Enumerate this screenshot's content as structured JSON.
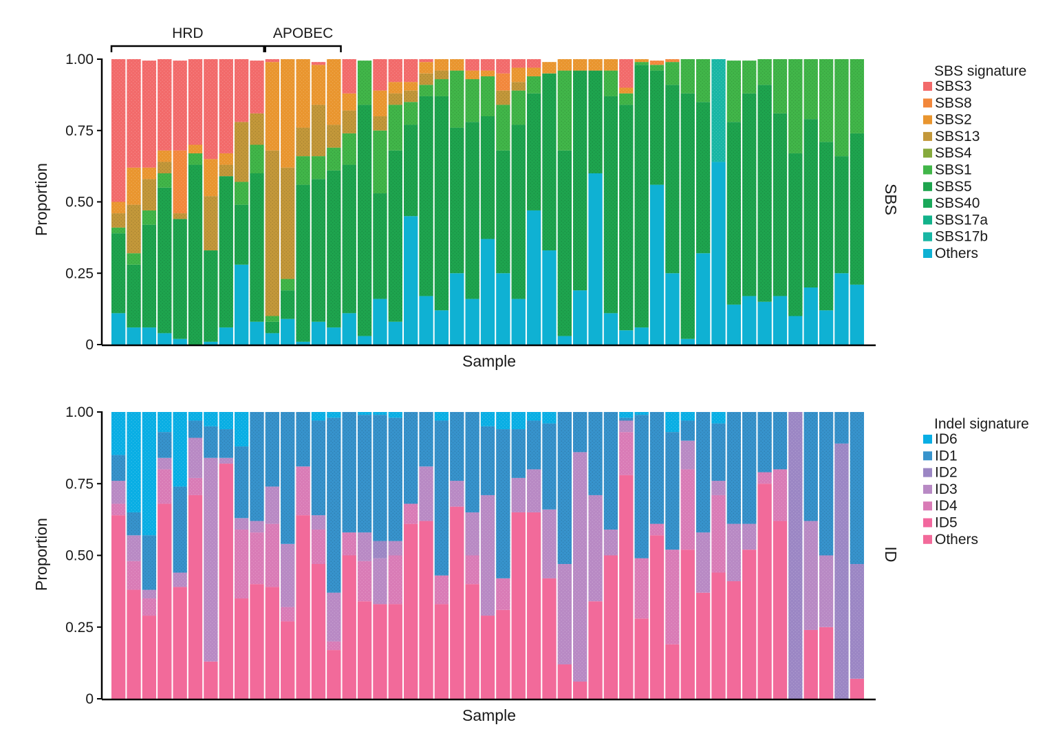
{
  "chart_data": [
    {
      "type": "stacked-bar",
      "panel": "SBS",
      "ylabel": "Proportion",
      "xlabel": "Sample",
      "ylim": [
        0,
        1
      ],
      "yticks": [
        "0",
        "0.25",
        "0.50",
        "0.75",
        "1.00"
      ],
      "legend_title": "SBS signature",
      "series": [
        {
          "name": "Others",
          "color": "#0fb1d3"
        },
        {
          "name": "SBS17b",
          "color": "#18b6a4"
        },
        {
          "name": "SBS17a",
          "color": "#12b28a"
        },
        {
          "name": "SBS40",
          "color": "#1aa85a"
        },
        {
          "name": "SBS5",
          "color": "#1ea44e"
        },
        {
          "name": "SBS1",
          "color": "#41b649"
        },
        {
          "name": "SBS4",
          "color": "#86aa3c"
        },
        {
          "name": "SBS13",
          "color": "#c3983a"
        },
        {
          "name": "SBS2",
          "color": "#e9952e"
        },
        {
          "name": "SBS8",
          "color": "#f2873b"
        },
        {
          "name": "SBS3",
          "color": "#f26a6a"
        }
      ],
      "legend_order": [
        "SBS3",
        "SBS8",
        "SBS2",
        "SBS13",
        "SBS4",
        "SBS1",
        "SBS5",
        "SBS40",
        "SBS17a",
        "SBS17b",
        "Others"
      ],
      "samples": [
        {
          "total": 1.0,
          "Others": 0.11,
          "SBS5": 0.28,
          "SBS1": 0.02,
          "SBS13": 0.05,
          "SBS2": 0.04,
          "SBS3": 0.5
        },
        {
          "total": 1.0,
          "Others": 0.06,
          "SBS5": 0.22,
          "SBS1": 0.04,
          "SBS13": 0.17,
          "SBS2": 0.13,
          "SBS3": 0.38
        },
        {
          "total": 0.995,
          "Others": 0.06,
          "SBS5": 0.36,
          "SBS1": 0.05,
          "SBS13": 0.11,
          "SBS2": 0.04,
          "SBS3": 0.375
        },
        {
          "total": 1.0,
          "Others": 0.04,
          "SBS5": 0.51,
          "SBS1": 0.05,
          "SBS13": 0.04,
          "SBS2": 0.04,
          "SBS3": 0.32
        },
        {
          "total": 0.995,
          "Others": 0.02,
          "SBS5": 0.42,
          "SBS13": 0.02,
          "SBS8": 0.22,
          "SBS3": 0.315
        },
        {
          "total": 1.0,
          "Others": 0.0,
          "SBS5": 0.63,
          "SBS1": 0.04,
          "SBS2": 0.03,
          "SBS3": 0.3
        },
        {
          "total": 1.0,
          "Others": 0.01,
          "SBS5": 0.32,
          "SBS13": 0.19,
          "SBS2": 0.13,
          "SBS3": 0.35
        },
        {
          "total": 1.0,
          "Others": 0.06,
          "SBS5": 0.53,
          "SBS13": 0.04,
          "SBS2": 0.04,
          "SBS3": 0.33
        },
        {
          "total": 1.0,
          "Others": 0.28,
          "SBS5": 0.21,
          "SBS1": 0.08,
          "SBS13": 0.21,
          "SBS3": 0.22
        },
        {
          "total": 0.995,
          "Others": 0.08,
          "SBS5": 0.52,
          "SBS1": 0.1,
          "SBS13": 0.11,
          "SBS3": 0.185
        },
        {
          "total": 1.0,
          "Others": 0.04,
          "SBS5": 0.04,
          "SBS1": 0.02,
          "SBS13": 0.58,
          "SBS2": 0.31,
          "SBS3": 0.01
        },
        {
          "total": 1.0,
          "Others": 0.09,
          "SBS5": 0.1,
          "SBS1": 0.04,
          "SBS13": 0.39,
          "SBS2": 0.38
        },
        {
          "total": 1.0,
          "Others": 0.01,
          "SBS5": 0.55,
          "SBS1": 0.1,
          "SBS13": 0.1,
          "SBS2": 0.24
        },
        {
          "total": 0.99,
          "Others": 0.08,
          "SBS5": 0.5,
          "SBS1": 0.08,
          "SBS13": 0.18,
          "SBS2": 0.14,
          "SBS3": 0.01
        },
        {
          "total": 1.0,
          "Others": 0.06,
          "SBS5": 0.55,
          "SBS1": 0.08,
          "SBS13": 0.08,
          "SBS2": 0.23
        },
        {
          "total": 1.0,
          "Others": 0.11,
          "SBS5": 0.52,
          "SBS1": 0.11,
          "SBS13": 0.08,
          "SBS2": 0.06,
          "SBS3": 0.12
        },
        {
          "total": 0.995,
          "Others": 0.03,
          "SBS5": 0.81,
          "SBS1": 0.155
        },
        {
          "total": 1.0,
          "Others": 0.16,
          "SBS5": 0.37,
          "SBS1": 0.22,
          "SBS13": 0.05,
          "SBS2": 0.09,
          "SBS3": 0.11
        },
        {
          "total": 1.0,
          "Others": 0.08,
          "SBS5": 0.6,
          "SBS1": 0.16,
          "SBS13": 0.04,
          "SBS2": 0.04,
          "SBS3": 0.08
        },
        {
          "total": 1.0,
          "Others": 0.45,
          "SBS5": 0.32,
          "SBS1": 0.08,
          "SBS13": 0.04,
          "SBS2": 0.03,
          "SBS3": 0.08
        },
        {
          "total": 1.0,
          "Others": 0.17,
          "SBS5": 0.7,
          "SBS1": 0.04,
          "SBS13": 0.04,
          "SBS2": 0.04,
          "SBS3": 0.01
        },
        {
          "total": 1.0,
          "Others": 0.12,
          "SBS5": 0.75,
          "SBS1": 0.06,
          "SBS13": 0.03,
          "SBS2": 0.04
        },
        {
          "total": 1.0,
          "Others": 0.25,
          "SBS5": 0.51,
          "SBS1": 0.2,
          "SBS2": 0.04
        },
        {
          "total": 1.0,
          "Others": 0.16,
          "SBS5": 0.62,
          "SBS1": 0.15,
          "SBS2": 0.03,
          "SBS3": 0.04
        },
        {
          "total": 1.0,
          "Others": 0.37,
          "SBS5": 0.43,
          "SBS1": 0.14,
          "SBS2": 0.02,
          "SBS3": 0.04
        },
        {
          "total": 1.0,
          "Others": 0.25,
          "SBS5": 0.43,
          "SBS1": 0.16,
          "SBS13": 0.05,
          "SBS8": 0.06,
          "SBS3": 0.05
        },
        {
          "total": 1.0,
          "Others": 0.16,
          "SBS5": 0.61,
          "SBS1": 0.12,
          "SBS13": 0.03,
          "SBS2": 0.05,
          "SBS3": 0.03
        },
        {
          "total": 1.0,
          "Others": 0.47,
          "SBS5": 0.41,
          "SBS1": 0.06,
          "SBS2": 0.03,
          "SBS3": 0.03
        },
        {
          "total": 0.99,
          "Others": 0.33,
          "SBS5": 0.62,
          "SBS2": 0.04
        },
        {
          "total": 1.0,
          "Others": 0.03,
          "SBS5": 0.65,
          "SBS1": 0.28,
          "SBS2": 0.04
        },
        {
          "total": 1.0,
          "Others": 0.19,
          "SBS5": 0.77,
          "SBS2": 0.04
        },
        {
          "total": 1.0,
          "Others": 0.6,
          "SBS5": 0.36,
          "SBS2": 0.04
        },
        {
          "total": 1.0,
          "Others": 0.11,
          "SBS5": 0.76,
          "SBS1": 0.09,
          "SBS2": 0.04
        },
        {
          "total": 1.0,
          "Others": 0.05,
          "SBS5": 0.79,
          "SBS1": 0.04,
          "SBS2": 0.02,
          "SBS3": 0.1
        },
        {
          "total": 1.0,
          "Others": 0.06,
          "SBS5": 0.92,
          "SBS1": 0.01,
          "SBS2": 0.01
        },
        {
          "total": 0.995,
          "Others": 0.56,
          "SBS5": 0.4,
          "SBS1": 0.02,
          "SBS8": 0.015
        },
        {
          "total": 1.0,
          "Others": 0.25,
          "SBS5": 0.66,
          "SBS1": 0.08,
          "SBS8": 0.01
        },
        {
          "total": 1.0,
          "Others": 0.02,
          "SBS5": 0.86,
          "SBS1": 0.12
        },
        {
          "total": 1.0,
          "Others": 0.32,
          "SBS5": 0.53,
          "SBS1": 0.15
        },
        {
          "total": 1.0,
          "Others": 0.64,
          "SBS17b": 0.36
        },
        {
          "total": 0.995,
          "Others": 0.14,
          "SBS5": 0.64,
          "SBS1": 0.215
        },
        {
          "total": 0.995,
          "Others": 0.17,
          "SBS5": 0.71,
          "SBS1": 0.115
        },
        {
          "total": 1.0,
          "Others": 0.15,
          "SBS5": 0.76,
          "SBS1": 0.09
        },
        {
          "total": 1.0,
          "Others": 0.17,
          "SBS5": 0.64,
          "SBS1": 0.19
        },
        {
          "total": 1.0,
          "Others": 0.1,
          "SBS5": 0.57,
          "SBS1": 0.33
        },
        {
          "total": 1.0,
          "Others": 0.2,
          "SBS5": 0.59,
          "SBS1": 0.21
        },
        {
          "total": 1.0,
          "Others": 0.12,
          "SBS5": 0.59,
          "SBS1": 0.29
        },
        {
          "total": 1.0,
          "Others": 0.25,
          "SBS5": 0.41,
          "SBS1": 0.34
        },
        {
          "total": 1.0,
          "Others": 0.21,
          "SBS5": 0.53,
          "SBS1": 0.26
        }
      ],
      "annotations": [
        {
          "label": "HRD",
          "from_sample": 1,
          "to_sample": 10
        },
        {
          "label": "APOBEC",
          "from_sample": 11,
          "to_sample": 15
        }
      ]
    },
    {
      "type": "stacked-bar",
      "panel": "ID",
      "ylabel": "Proportion",
      "xlabel": "Sample",
      "ylim": [
        0,
        1
      ],
      "yticks": [
        "0",
        "0.25",
        "0.50",
        "0.75",
        "1.00"
      ],
      "legend_title": "Indel signature",
      "series": [
        {
          "name": "Others",
          "color": "#f26a9a"
        },
        {
          "name": "ID5",
          "color": "#f2689e"
        },
        {
          "name": "ID4",
          "color": "#d97bb6"
        },
        {
          "name": "ID3",
          "color": "#b889c4"
        },
        {
          "name": "ID2",
          "color": "#9b86c4"
        },
        {
          "name": "ID1",
          "color": "#3793cc"
        },
        {
          "name": "ID6",
          "color": "#08aee4"
        }
      ],
      "legend_order": [
        "ID6",
        "ID1",
        "ID2",
        "ID3",
        "ID4",
        "ID5",
        "Others"
      ],
      "samples": [
        {
          "Others": 0.64,
          "ID4": 0.04,
          "ID3": 0.08,
          "ID1": 0.09,
          "ID6": 0.15
        },
        {
          "Others": 0.38,
          "ID4": 0.1,
          "ID3": 0.09,
          "ID1": 0.08,
          "ID6": 0.35
        },
        {
          "Others": 0.29,
          "ID4": 0.06,
          "ID3": 0.03,
          "ID1": 0.19,
          "ID6": 0.43
        },
        {
          "Others": 0.68,
          "ID4": 0.12,
          "ID3": 0.04,
          "ID1": 0.09,
          "ID6": 0.07
        },
        {
          "Others": 0.39,
          "ID4": 0.0,
          "ID3": 0.05,
          "ID1": 0.3,
          "ID6": 0.26
        },
        {
          "Others": 0.71,
          "ID4": 0.06,
          "ID3": 0.14,
          "ID1": 0.06,
          "ID6": 0.03
        },
        {
          "Others": 0.13,
          "ID3": 0.71,
          "ID1": 0.11,
          "ID6": 0.05
        },
        {
          "Others": 0.82,
          "ID3": 0.02,
          "ID1": 0.1,
          "ID6": 0.06
        },
        {
          "Others": 0.35,
          "ID4": 0.24,
          "ID3": 0.04,
          "ID1": 0.25,
          "ID6": 0.12
        },
        {
          "Others": 0.4,
          "ID4": 0.18,
          "ID3": 0.04,
          "ID1": 0.38
        },
        {
          "Others": 0.39,
          "ID4": 0.22,
          "ID3": 0.13,
          "ID1": 0.26
        },
        {
          "Others": 0.27,
          "ID4": 0.05,
          "ID3": 0.22,
          "ID1": 0.46
        },
        {
          "Others": 0.64,
          "ID4": 0.17,
          "ID1": 0.19
        },
        {
          "Others": 0.47,
          "ID4": 0.12,
          "ID3": 0.05,
          "ID1": 0.33,
          "ID6": 0.03
        },
        {
          "Others": 0.17,
          "ID4": 0.03,
          "ID3": 0.17,
          "ID1": 0.61,
          "ID6": 0.02
        },
        {
          "Others": 0.5,
          "ID4": 0.08,
          "ID1": 0.42
        },
        {
          "Others": 0.34,
          "ID4": 0.14,
          "ID3": 0.1,
          "ID1": 0.41,
          "ID6": 0.01
        },
        {
          "Others": 0.33,
          "ID3": 0.16,
          "ID2": 0.06,
          "ID1": 0.44,
          "ID6": 0.01
        },
        {
          "Others": 0.33,
          "ID4": 0.17,
          "ID3": 0.05,
          "ID1": 0.43,
          "ID6": 0.02
        },
        {
          "Others": 0.61,
          "ID4": 0.07,
          "ID1": 0.32
        },
        {
          "Others": 0.62,
          "ID3": 0.19,
          "ID1": 0.19
        },
        {
          "Others": 0.33,
          "ID4": 0.1,
          "ID1": 0.54,
          "ID6": 0.03
        },
        {
          "Others": 0.67,
          "ID3": 0.09,
          "ID1": 0.24
        },
        {
          "Others": 0.4,
          "ID4": 0.1,
          "ID3": 0.15,
          "ID1": 0.35
        },
        {
          "Others": 0.29,
          "ID3": 0.42,
          "ID1": 0.24,
          "ID6": 0.05
        },
        {
          "Others": 0.31,
          "ID4": 0.11,
          "ID1": 0.52,
          "ID6": 0.06
        },
        {
          "Others": 0.65,
          "ID3": 0.12,
          "ID1": 0.17,
          "ID6": 0.06
        },
        {
          "Others": 0.65,
          "ID3": 0.15,
          "ID1": 0.17,
          "ID6": 0.03
        },
        {
          "Others": 0.42,
          "ID3": 0.24,
          "ID1": 0.3,
          "ID6": 0.04
        },
        {
          "Others": 0.12,
          "ID3": 0.35,
          "ID1": 0.53
        },
        {
          "Others": 0.06,
          "ID3": 0.8,
          "ID1": 0.14
        },
        {
          "Others": 0.34,
          "ID3": 0.37,
          "ID1": 0.29
        },
        {
          "Others": 0.5,
          "ID3": 0.09,
          "ID1": 0.41
        },
        {
          "Others": 0.78,
          "ID4": 0.15,
          "ID3": 0.04,
          "ID1": 0.01,
          "ID6": 0.02
        },
        {
          "Others": 0.28,
          "ID4": 0.21,
          "ID1": 0.5,
          "ID6": 0.01
        },
        {
          "Others": 0.57,
          "ID4": 0.04,
          "ID1": 0.39
        },
        {
          "Others": 0.19,
          "ID4": 0.33,
          "ID1": 0.41,
          "ID6": 0.07
        },
        {
          "Others": 0.52,
          "ID4": 0.28,
          "ID3": 0.1,
          "ID1": 0.07,
          "ID6": 0.03
        },
        {
          "Others": 0.37,
          "ID3": 0.21,
          "ID1": 0.42
        },
        {
          "Others": 0.44,
          "ID4": 0.27,
          "ID3": 0.05,
          "ID1": 0.2,
          "ID6": 0.04
        },
        {
          "Others": 0.41,
          "ID3": 0.2,
          "ID1": 0.39
        },
        {
          "Others": 0.52,
          "ID3": 0.09,
          "ID1": 0.39
        },
        {
          "Others": 0.75,
          "ID4": 0.04,
          "ID1": 0.21
        },
        {
          "Others": 0.62,
          "ID4": 0.18,
          "ID1": 0.2
        },
        {
          "Others": 0.0,
          "ID2": 1.0
        },
        {
          "Others": 0.24,
          "ID3": 0.38,
          "ID1": 0.38
        },
        {
          "Others": 0.25,
          "ID3": 0.25,
          "ID1": 0.5
        },
        {
          "Others": 0.0,
          "ID2": 0.89,
          "ID1": 0.11
        },
        {
          "Others": 0.07,
          "ID2": 0.4,
          "ID1": 0.53
        }
      ]
    }
  ]
}
